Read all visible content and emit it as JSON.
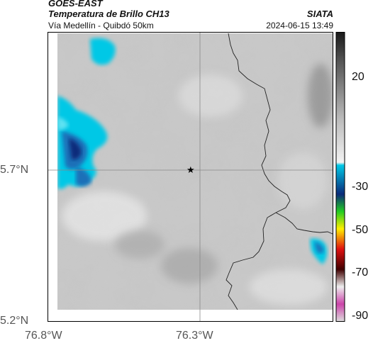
{
  "header": {
    "satellite": "GOES-EAST",
    "product": "Temperatura de Brillo CH13",
    "route": "Vía Medellín - Quibdó 50km",
    "org": "SIATA",
    "timestamp": "2024-06-15 13:49"
  },
  "map": {
    "lat_labels": [
      "5.7°N",
      "5.2°N"
    ],
    "lon_labels": [
      "76.8°W",
      "76.3°W"
    ],
    "marker": "star-icon",
    "center_lat": 5.7,
    "center_lon": -76.3
  },
  "colorbar": {
    "ticks": [
      "20",
      "-30",
      "-50",
      "-70",
      "-90"
    ],
    "colors": {
      "warm_dark": "#1a1a1a",
      "gray_mid": "#9a9a9a",
      "cyan": "#00c8e6",
      "blue": "#0a2a7a",
      "green": "#22cc22",
      "yellow": "#ffee00",
      "red": "#e01010",
      "dark_red": "#400000",
      "magenta": "#cc44aa"
    }
  }
}
